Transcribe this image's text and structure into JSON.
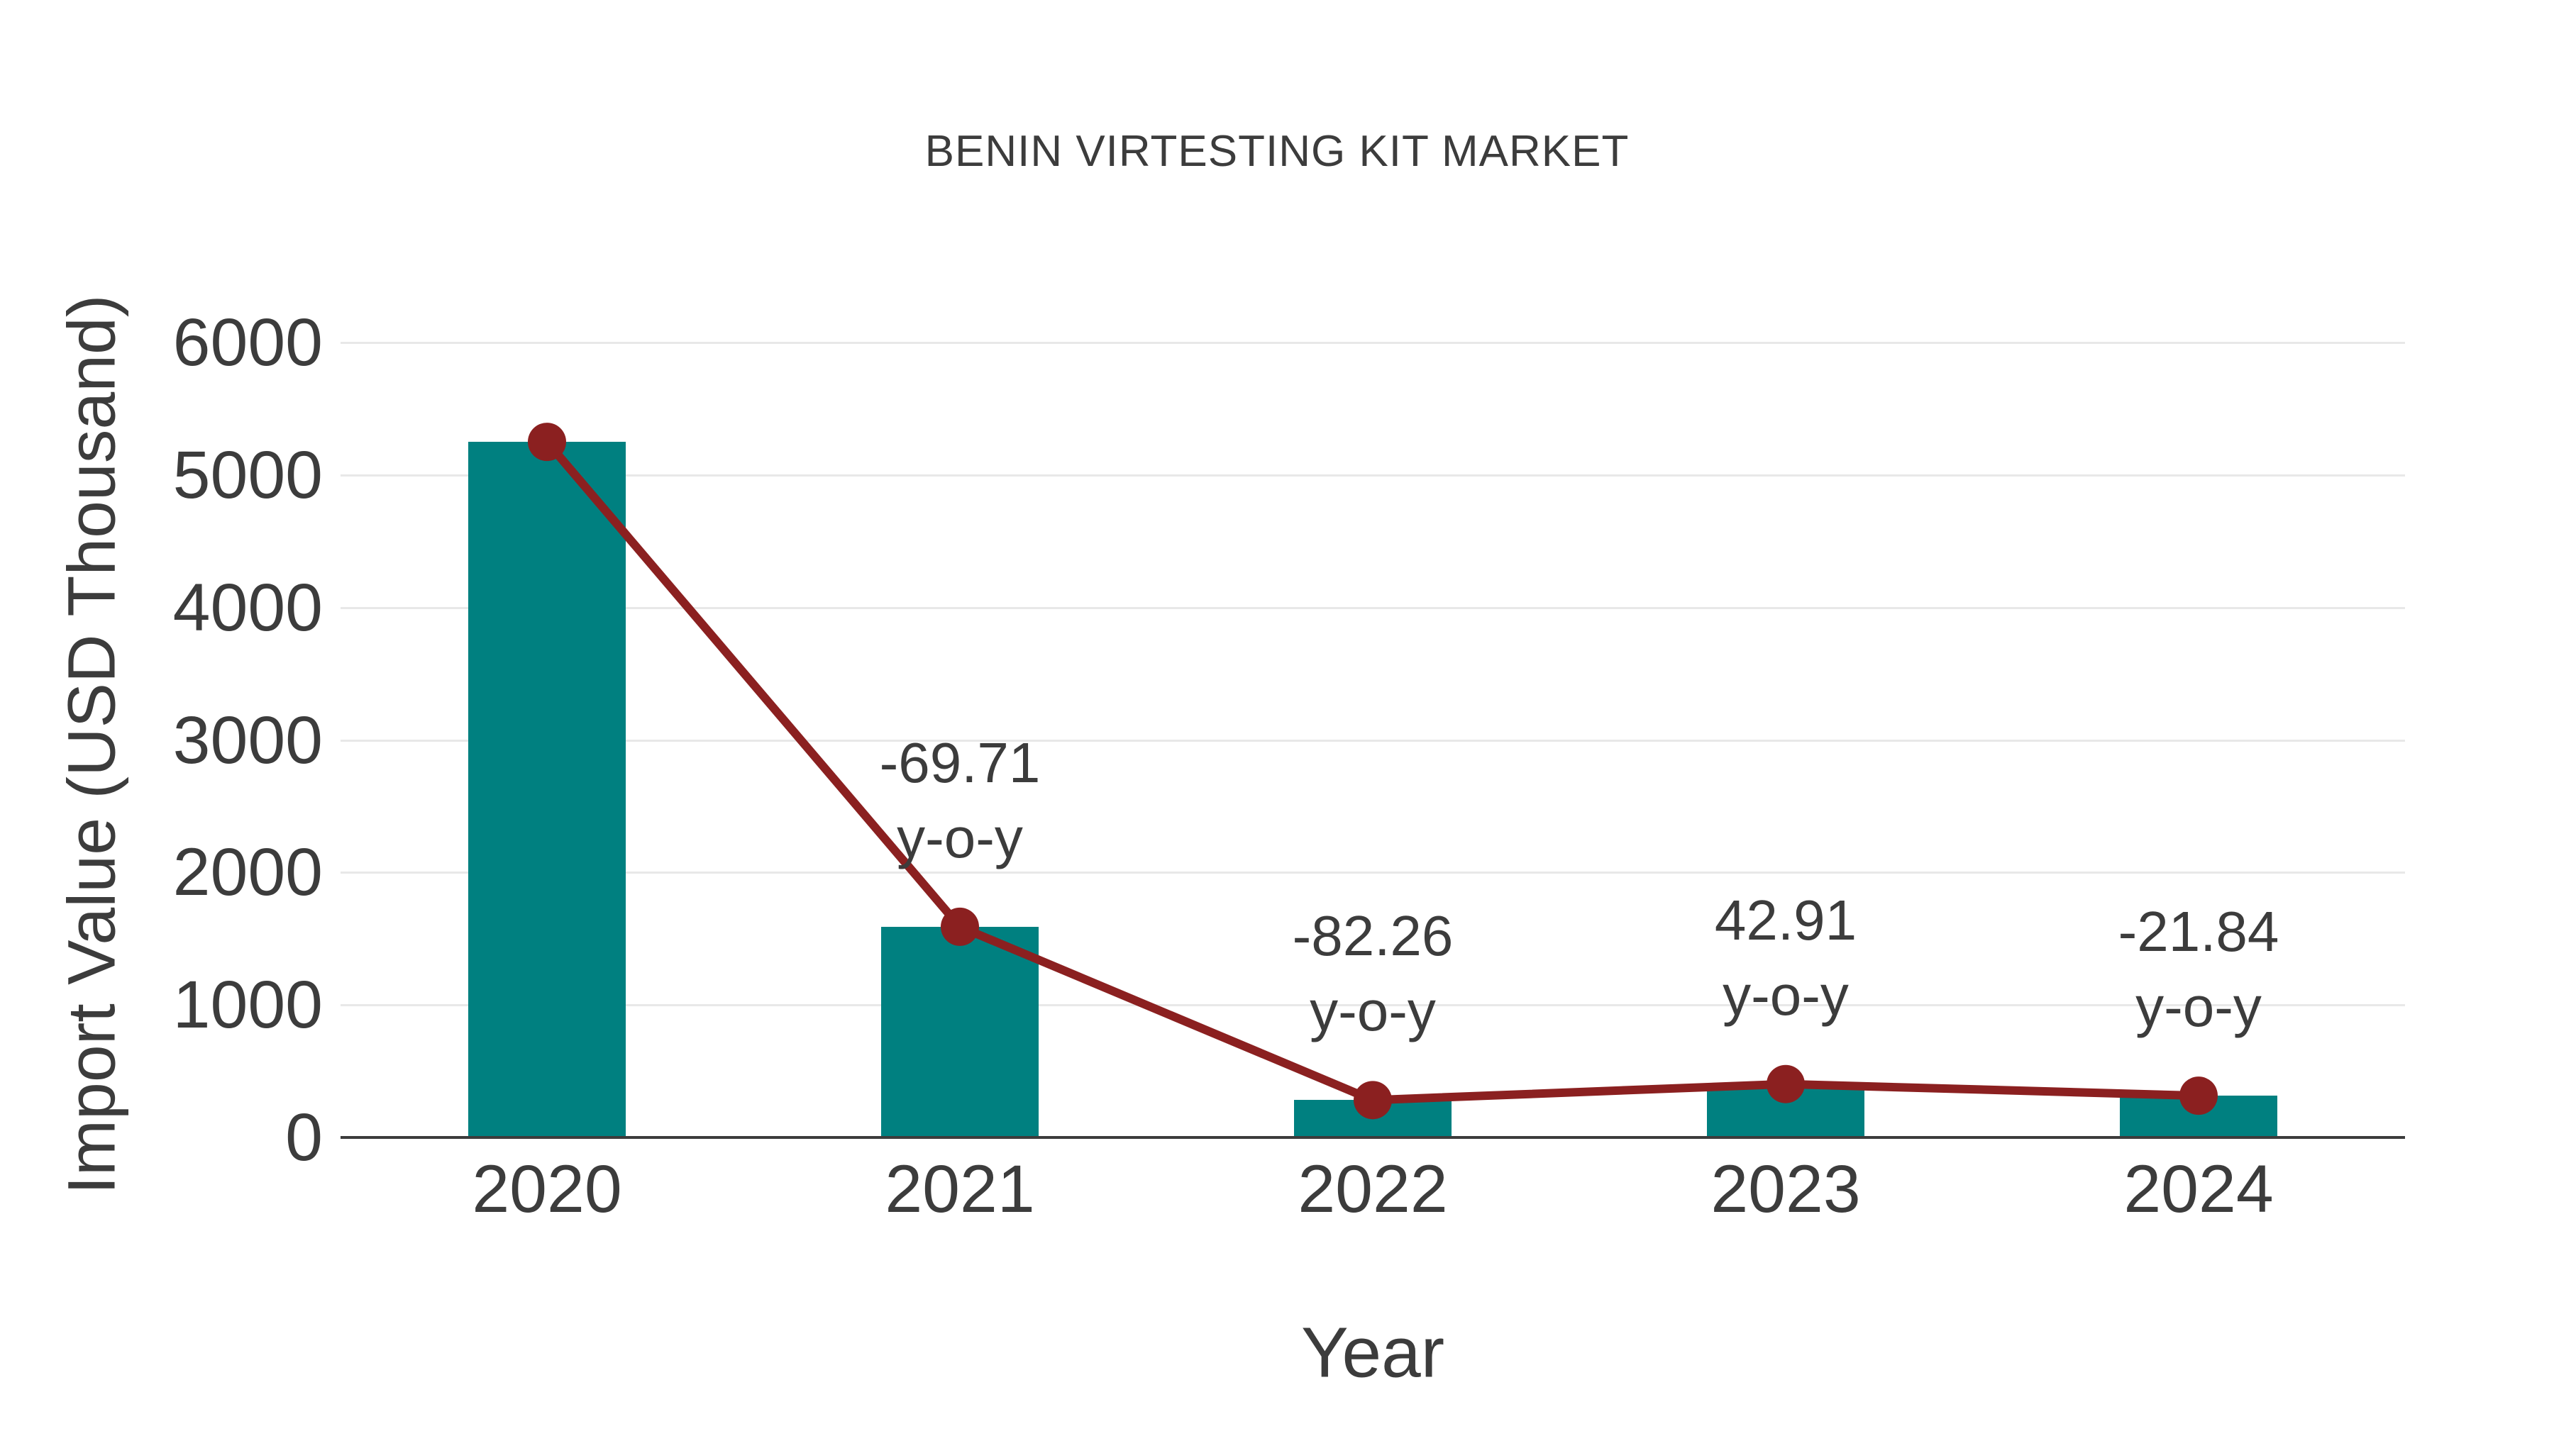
{
  "title": "BENIN VIRTESTING KIT MARKET",
  "colors": {
    "bar": "#008080",
    "line": "#8b2020",
    "marker": "#8b2020",
    "grid": "#e8e8e8",
    "axis": "#3c3c3c",
    "text": "#3c3c3c",
    "background": "#ffffff"
  },
  "chart_data": {
    "type": "bar",
    "subtype": "bar-with-line-overlay",
    "title": "BENIN VIRTESTING KIT MARKET",
    "xlabel": "Year",
    "ylabel": "Import Value (USD Thousand)",
    "categories": [
      "2020",
      "2021",
      "2022",
      "2023",
      "2024"
    ],
    "series": [
      {
        "name": "Import Value (bar)",
        "type": "bar",
        "values": [
          5250,
          1590,
          282,
          403,
          315
        ]
      },
      {
        "name": "Import Value (line)",
        "type": "line",
        "values": [
          5250,
          1590,
          282,
          403,
          315
        ]
      }
    ],
    "annotations": [
      {
        "category": "2021",
        "lines": [
          "-69.71",
          "y-o-y"
        ]
      },
      {
        "category": "2022",
        "lines": [
          "-82.26",
          "y-o-y"
        ]
      },
      {
        "category": "2023",
        "lines": [
          "42.91",
          "y-o-y"
        ]
      },
      {
        "category": "2024",
        "lines": [
          "-21.84",
          "y-o-y"
        ]
      }
    ],
    "ylim": [
      0,
      6000
    ],
    "yticks": [
      0,
      1000,
      2000,
      3000,
      4000,
      5000,
      6000
    ],
    "grid": true,
    "legend_position": "none"
  }
}
